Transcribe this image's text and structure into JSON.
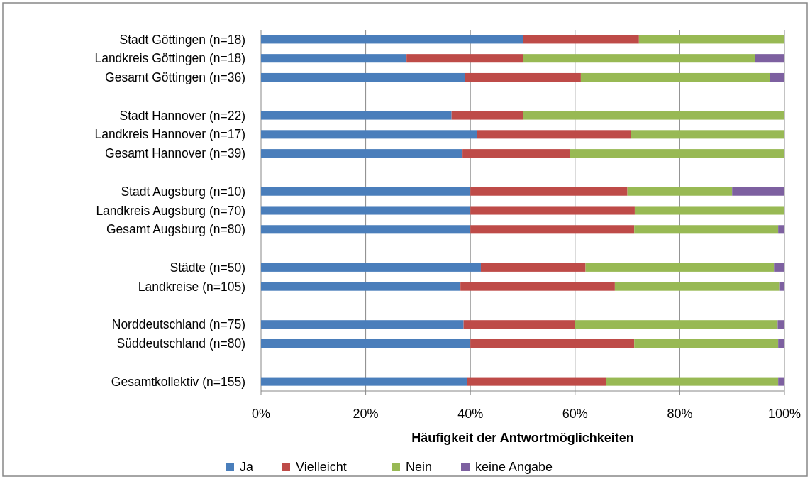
{
  "chart_data": {
    "type": "bar",
    "orientation": "horizontal",
    "stacked": true,
    "categories": [
      "Stadt Göttingen (n=18)",
      "Landkreis Göttingen (n=18)",
      "Gesamt Göttingen (n=36)",
      null,
      "Stadt Hannover (n=22)",
      "Landkreis Hannover (n=17)",
      "Gesamt Hannover (n=39)",
      null,
      "Stadt Augsburg  (n=10)",
      "Landkreis Augsburg (n=70)",
      "Gesamt Augsburg  (n=80)",
      null,
      "Städte (n=50)",
      "Landkreise (n=105)",
      null,
      "Norddeutschland (n=75)",
      "Süddeutschland (n=80)",
      null,
      "Gesamtkollektiv (n=155)"
    ],
    "series": [
      {
        "name": "Ja",
        "color": "#4a7ebb",
        "values": [
          50,
          27.8,
          38.9,
          null,
          36.4,
          41.2,
          38.5,
          null,
          40,
          40,
          40,
          null,
          42,
          38.1,
          null,
          38.7,
          40,
          null,
          39.4
        ]
      },
      {
        "name": "Vielleicht",
        "color": "#be4b48",
        "values": [
          22.2,
          22.2,
          22.2,
          null,
          13.6,
          29.4,
          20.5,
          null,
          30,
          31.4,
          31.3,
          null,
          20,
          29.5,
          null,
          21.3,
          31.3,
          null,
          26.5
        ]
      },
      {
        "name": "Nein",
        "color": "#98b954",
        "values": [
          27.8,
          44.4,
          36.1,
          null,
          50,
          29.4,
          41,
          null,
          20,
          28.6,
          27.5,
          null,
          36,
          31.4,
          null,
          38.7,
          27.5,
          null,
          32.9
        ]
      },
      {
        "name": "keine Angabe",
        "color": "#7d60a0",
        "values": [
          0,
          5.6,
          2.8,
          null,
          0,
          0,
          0,
          null,
          10,
          0,
          1.2,
          null,
          2,
          1,
          null,
          1.3,
          1.2,
          null,
          1.2
        ]
      }
    ],
    "xlim": [
      0,
      100
    ],
    "xticks": [
      {
        "value": 0,
        "label": "0%"
      },
      {
        "value": 20,
        "label": "20%"
      },
      {
        "value": 40,
        "label": "40%"
      },
      {
        "value": 60,
        "label": "60%"
      },
      {
        "value": 80,
        "label": "80%"
      },
      {
        "value": 100,
        "label": "100%"
      }
    ],
    "xlabel": "Häufigkeit der Antwortmöglichkeiten",
    "grid": "x",
    "legend": "bottom"
  }
}
